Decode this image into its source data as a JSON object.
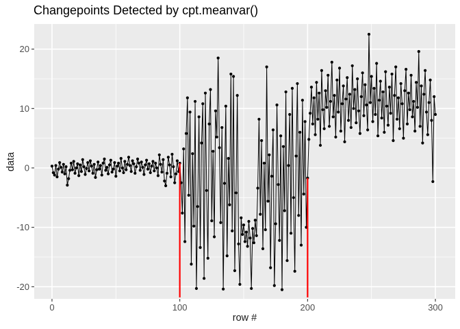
{
  "page": {
    "title": "Changepoints Detected by cpt.meanvar()"
  },
  "chart_data": {
    "type": "line",
    "title": "Changepoints Detected by cpt.meanvar()",
    "xlabel": "row #",
    "ylabel": "data",
    "legend": "none",
    "grid": "on",
    "x_ticks": [
      0,
      100,
      200,
      300
    ],
    "x_minor_ticks": [
      50,
      150,
      250
    ],
    "y_ticks": [
      20,
      10,
      0,
      -10,
      -20
    ],
    "y_minor_ticks": [
      15,
      5,
      -5,
      -15
    ],
    "x_domain": [
      -13.9,
      315.5
    ],
    "y_domain": [
      -22.04,
      24.23
    ],
    "x_start": 0,
    "changepoints": [
      100,
      200
    ],
    "colors": {
      "point": "#000000",
      "line": "#000000",
      "changepoint": "#FF0000",
      "panel": "#EBEBEB",
      "grid": "#FFFFFF",
      "axis_text": "#4D4D4D",
      "tick_mark": "#333333",
      "title": "#000000",
      "axis_title": "#1A1A1A"
    },
    "values": [
      0.3,
      -0.8,
      -1.2,
      0.4,
      -1.5,
      -0.2,
      0.9,
      0.1,
      -0.7,
      0.6,
      -1.0,
      0.2,
      -2.9,
      -1.8,
      -0.4,
      0.8,
      -0.3,
      1.1,
      -0.9,
      0.0,
      0.7,
      -1.3,
      0.5,
      -0.6,
      1.4,
      0.2,
      -1.1,
      -0.1,
      0.9,
      -0.5,
      1.2,
      0.3,
      -0.9,
      0.6,
      -1.6,
      -0.3,
      1.0,
      -0.2,
      0.4,
      -1.2,
      0.8,
      1.5,
      -0.4,
      0.1,
      -1.0,
      0.5,
      1.3,
      -0.7,
      -0.2,
      0.9,
      -1.4,
      0.3,
      0.8,
      -0.5,
      1.6,
      0.0,
      -0.8,
      1.1,
      -0.3,
      0.6,
      1.8,
      0.4,
      -0.6,
      1.2,
      0.7,
      -0.9,
      0.2,
      1.5,
      0.8,
      -0.4,
      1.0,
      0.1,
      -1.1,
      0.5,
      1.3,
      -0.2,
      0.7,
      -0.8,
      0.3,
      1.1,
      -0.5,
      0.8,
      0.0,
      -1.3,
      2.2,
      0.6,
      -0.7,
      1.4,
      -2.2,
      -3.0,
      -0.9,
      1.8,
      0.5,
      -1.5,
      2.3,
      0.2,
      -2.5,
      -1.0,
      1.2,
      -0.6,
      0.8,
      -2.5,
      -7.6,
      3.2,
      -12.4,
      5.8,
      11.8,
      -4.6,
      9.4,
      -16.2,
      2.4,
      -9.8,
      11.2,
      -20.3,
      -6.5,
      8.6,
      -13.4,
      4.2,
      10.8,
      -18.6,
      12.6,
      -3.8,
      -15.2,
      7.4,
      13.2,
      -8.9,
      2.8,
      -11.6,
      9.6,
      5.2,
      18.5,
      3.4,
      -9.2,
      6.8,
      -20.4,
      -2.6,
      10.4,
      -14.8,
      1.6,
      -6.2,
      15.8,
      -10.6,
      15.4,
      -17.3,
      -4.2,
      12.2,
      -12.8,
      -19.6,
      -8.4,
      -11.2,
      -9.6,
      -12.4,
      -10.8,
      -13.2,
      -9.0,
      -11.8,
      -20.3,
      -10.2,
      -12.6,
      -8.8,
      -11.4,
      -3.4,
      8.2,
      -7.8,
      4.6,
      -13.6,
      0.8,
      -10.4,
      17.0,
      -5.6,
      2.2,
      -16.8,
      -1.4,
      6.4,
      -19.8,
      -9.4,
      10.6,
      -2.8,
      -12.2,
      5.4,
      -20.5,
      3.6,
      -7.2,
      12.8,
      -15.6,
      0.4,
      9.0,
      -11.0,
      13.4,
      -5.0,
      -17.4,
      2.0,
      14.2,
      -8.0,
      6.0,
      -13.0,
      11.4,
      -4.4,
      7.8,
      -10.0,
      -1.7,
      4.8,
      9.2,
      13.6,
      7.4,
      11.8,
      5.6,
      14.4,
      8.2,
      12.6,
      3.8,
      16.4,
      9.8,
      6.6,
      13.0,
      10.2,
      15.6,
      7.0,
      11.2,
      17.8,
      8.6,
      12.2,
      5.2,
      14.8,
      9.4,
      16.8,
      6.2,
      10.8,
      13.8,
      4.4,
      11.6,
      15.2,
      8.0,
      12.4,
      6.8,
      17.2,
      10.0,
      13.2,
      7.6,
      15.0,
      9.6,
      5.8,
      12.0,
      16.0,
      8.8,
      14.0,
      10.6,
      6.4,
      22.5,
      11.0,
      15.4,
      7.8,
      13.4,
      9.0,
      17.6,
      5.4,
      11.4,
      14.6,
      8.4,
      12.8,
      6.0,
      16.2,
      10.4,
      7.2,
      13.6,
      9.2,
      15.8,
      4.6,
      12.2,
      17.0,
      8.2,
      11.8,
      6.6,
      14.2,
      10.8,
      5.0,
      13.0,
      16.6,
      7.4,
      12.6,
      9.8,
      15.6,
      8.6,
      11.2,
      6.2,
      14.4,
      10.2,
      19.6,
      7.0,
      13.8,
      4.2,
      12.4,
      16.4,
      9.4,
      5.6,
      11.0,
      14.8,
      8.0,
      -2.3,
      12.0,
      9.0
    ]
  }
}
